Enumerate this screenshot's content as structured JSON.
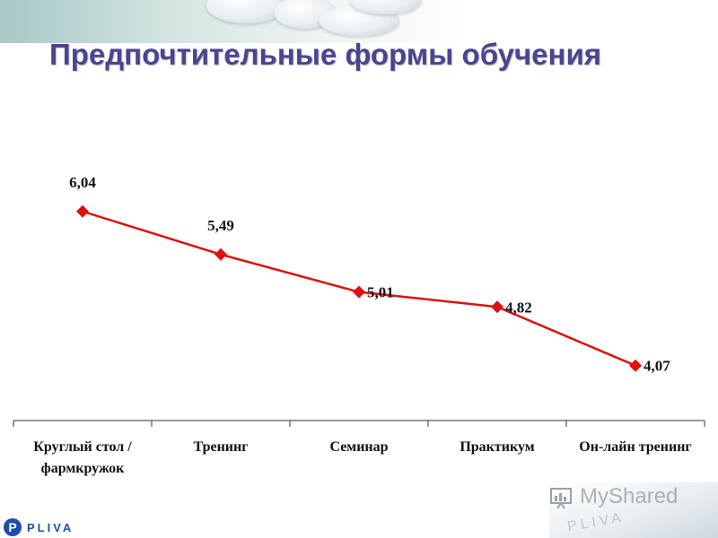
{
  "title": "Предпочтительные формы обучения",
  "chart_data": {
    "type": "line",
    "categories": [
      "Круглый стол / фармкружок",
      "Тренинг",
      "Семинар",
      "Практикум",
      "Он-лайн тренинг"
    ],
    "category_lines": [
      [
        "Круглый стол /",
        "фармкружок"
      ],
      [
        "Тренинг"
      ],
      [
        "Семинар"
      ],
      [
        "Практикум"
      ],
      [
        "Он-лайн тренинг"
      ]
    ],
    "series": [
      {
        "values": [
          6.04,
          5.49,
          5.01,
          4.82,
          4.07
        ],
        "value_labels": [
          "6,04",
          "5,49",
          "5,01",
          "4,82",
          "4,07"
        ],
        "color": "#e01010",
        "marker": "diamond"
      }
    ],
    "data_label_position": [
      "above",
      "above",
      "right",
      "right",
      "right"
    ],
    "ylim": [
      3.7,
      6.45
    ],
    "grid": false,
    "legend": "none",
    "xlabel": "",
    "ylabel": ""
  },
  "footer": {
    "logo_letter": "P",
    "logo_text": "PLIVA",
    "watermark": "MyShared",
    "watermark_sub": "PLIVA"
  },
  "colors": {
    "title": "#4a4590",
    "axis": "#333333",
    "line": "#e01010",
    "brand": "#1e4ea8"
  }
}
